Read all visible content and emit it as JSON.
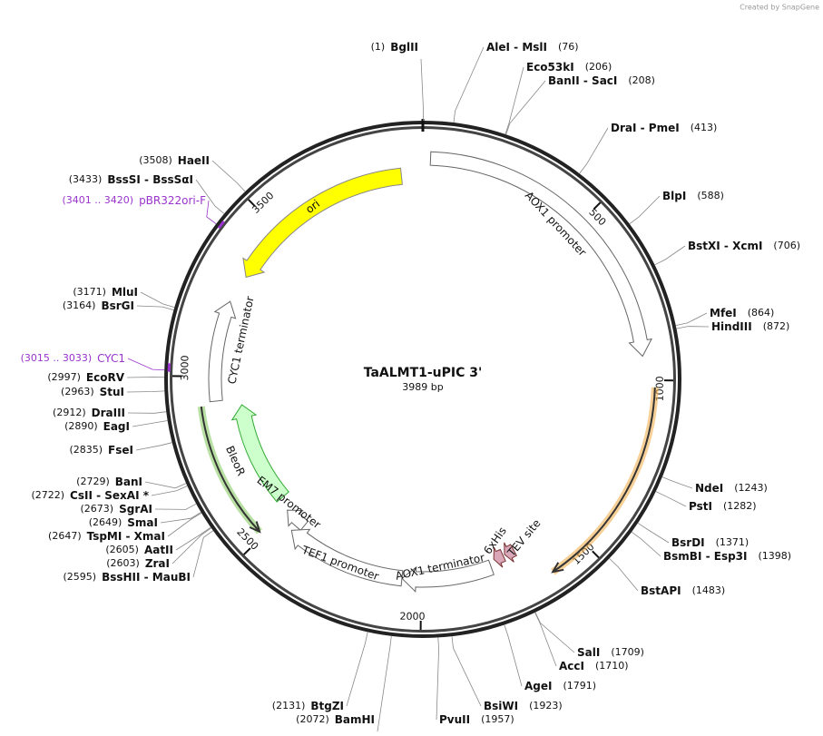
{
  "watermark": "Created by SnapGene",
  "map": {
    "title": "TaALMT1-uPIC 3'",
    "length": "3989 bp",
    "ticks": [
      500,
      1000,
      1500,
      2000,
      2500,
      3000,
      3500
    ]
  },
  "sites": [
    {
      "position": "(1)",
      "name": "BglII"
    },
    {
      "position": "(76)",
      "name": "AleI - MslI"
    },
    {
      "position": "(206)",
      "name": "Eco53kI"
    },
    {
      "position": "(208)",
      "name": "BanII - SacI"
    },
    {
      "position": "(413)",
      "name": "DraI - PmeI"
    },
    {
      "position": "(588)",
      "name": "BlpI"
    },
    {
      "position": "(706)",
      "name": "BstXI - XcmI"
    },
    {
      "position": "(864)",
      "name": "MfeI"
    },
    {
      "position": "(872)",
      "name": "HindIII"
    },
    {
      "position": "(1243)",
      "name": "NdeI"
    },
    {
      "position": "(1282)",
      "name": "PstI"
    },
    {
      "position": "(1371)",
      "name": "BsrDI"
    },
    {
      "position": "(1398)",
      "name": "BsmBI - Esp3I"
    },
    {
      "position": "(1483)",
      "name": "BstAPI"
    },
    {
      "position": "(1709)",
      "name": "SalI"
    },
    {
      "position": "(1710)",
      "name": "AccI"
    },
    {
      "position": "(1791)",
      "name": "AgeI"
    },
    {
      "position": "(1923)",
      "name": "BsiWI"
    },
    {
      "position": "(1957)",
      "name": "PvuII"
    },
    {
      "position": "(2072)",
      "name": "BamHI"
    },
    {
      "position": "(2131)",
      "name": "BtgZI"
    },
    {
      "position": "(2595)",
      "name": "BssHII - MauBI"
    },
    {
      "position": "(2603)",
      "name": "ZraI"
    },
    {
      "position": "(2605)",
      "name": "AatII"
    },
    {
      "position": "(2647)",
      "name": "TspMI - XmaI"
    },
    {
      "position": "(2649)",
      "name": "SmaI"
    },
    {
      "position": "(2673)",
      "name": "SgrAI"
    },
    {
      "position": "(2722)",
      "name": "CsII - SexAI *"
    },
    {
      "position": "(2729)",
      "name": "BanI"
    },
    {
      "position": "(2835)",
      "name": "FseI"
    },
    {
      "position": "(2890)",
      "name": "EagI"
    },
    {
      "position": "(2912)",
      "name": "DraIII"
    },
    {
      "position": "(2963)",
      "name": "StuI"
    },
    {
      "position": "(2997)",
      "name": "EcoRV"
    },
    {
      "position": "(3164)",
      "name": "BsrGI"
    },
    {
      "position": "(3171)",
      "name": "MluI"
    },
    {
      "position": "(3433)",
      "name": "BssSI - BssSαI"
    },
    {
      "position": "(3508)",
      "name": "HaeII"
    }
  ],
  "markers": [
    {
      "position": "(3015 .. 3033)",
      "name": "CYC1"
    },
    {
      "position": "(3401 .. 3420)",
      "name": "pBR322ori-F"
    }
  ],
  "features": [
    {
      "label": "AOX1 promoter"
    },
    {
      "label": "ori"
    },
    {
      "label": "CYC1 terminator"
    },
    {
      "label": "BleoR"
    },
    {
      "label": "EM7 promoter"
    },
    {
      "label": "TEF1 promoter"
    },
    {
      "label": "AOX1 terminator"
    },
    {
      "label": "6xHis"
    },
    {
      "label": "TEV site"
    }
  ]
}
